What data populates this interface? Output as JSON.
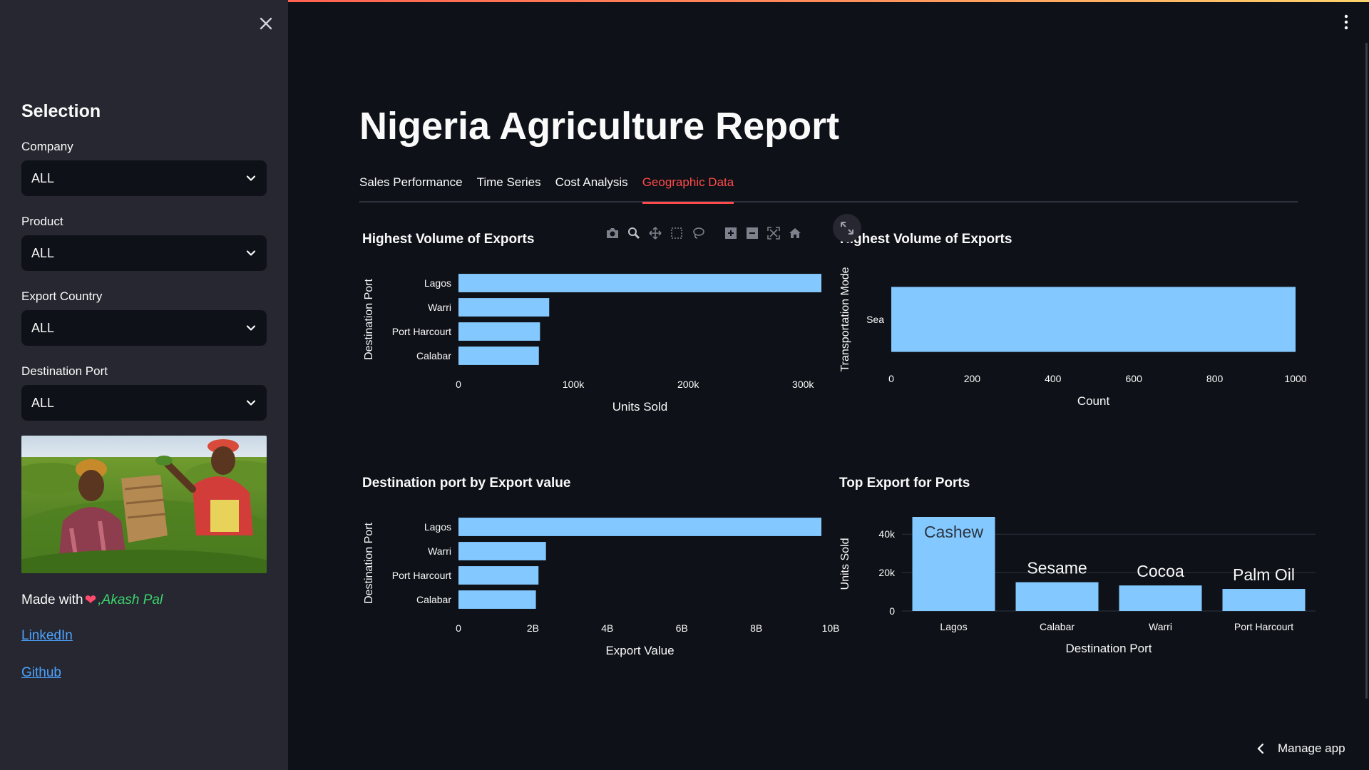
{
  "sidebar": {
    "heading": "Selection",
    "filters": [
      {
        "label": "Company",
        "value": "ALL"
      },
      {
        "label": "Product",
        "value": "ALL"
      },
      {
        "label": "Export Country",
        "value": "ALL"
      },
      {
        "label": "Destination Port",
        "value": "ALL"
      }
    ],
    "made_with": "Made with",
    "author": ",Akash Pal",
    "links": [
      "LinkedIn",
      "Github"
    ]
  },
  "header": {
    "title": "Nigeria Agriculture Report"
  },
  "tabs": [
    {
      "label": "Sales Performance",
      "active": false
    },
    {
      "label": "Time Series",
      "active": false
    },
    {
      "label": "Cost Analysis",
      "active": false
    },
    {
      "label": "Geographic Data",
      "active": true
    }
  ],
  "toolbar": {
    "manage_app": "Manage app"
  },
  "icons": [
    "close-icon",
    "chevron-down-icon",
    "camera-icon",
    "zoom-icon",
    "pan-icon",
    "box-select-icon",
    "lasso-icon",
    "zoom-in-icon",
    "zoom-out-icon",
    "autoscale-icon",
    "home-icon",
    "expand-icon",
    "kebab-menu-icon",
    "chevron-left-icon",
    "heart-icon"
  ],
  "colors": {
    "accent": "#ff4b4b",
    "bar": "#83c9ff",
    "link": "#4da3ff",
    "author": "#3dd56d"
  },
  "chart_data": [
    {
      "type": "bar",
      "orientation": "horizontal",
      "title": "Highest Volume of Exports",
      "xlabel": "Units Sold",
      "ylabel": "Destination Port",
      "categories": [
        "Lagos",
        "Warri",
        "Port Harcourt",
        "Calabar"
      ],
      "values": [
        316000,
        79000,
        71000,
        70000
      ],
      "xticks": [
        "0",
        "100k",
        "200k",
        "300k"
      ],
      "xlim": [
        0,
        316000
      ]
    },
    {
      "type": "bar",
      "orientation": "horizontal",
      "title": "Highest Volume of Exports",
      "xlabel": "Count",
      "ylabel": "Transportation Mode",
      "categories": [
        "Sea"
      ],
      "values": [
        1000
      ],
      "xticks": [
        "0",
        "200",
        "400",
        "600",
        "800",
        "1000"
      ],
      "xlim": [
        0,
        1000
      ]
    },
    {
      "type": "bar",
      "orientation": "horizontal",
      "title": "Destination port by Export value",
      "xlabel": "Export Value",
      "ylabel": "Destination Port",
      "categories": [
        "Lagos",
        "Warri",
        "Port Harcourt",
        "Calabar"
      ],
      "values": 9750000000,
      "values_list": [
        9750000000,
        2350000000,
        2150000000,
        2080000000
      ],
      "xticks": [
        "0",
        "2B",
        "4B",
        "6B",
        "8B",
        "10B"
      ],
      "xlim": [
        0,
        9750000000
      ]
    },
    {
      "type": "bar",
      "orientation": "vertical",
      "title": "Top Export for Ports",
      "xlabel": "Destination Port",
      "ylabel": "Units Sold",
      "categories": [
        "Lagos",
        "Calabar",
        "Warri",
        "Port Harcourt"
      ],
      "values": [
        49000,
        15000,
        13300,
        11500
      ],
      "labels": [
        "Cashew",
        "Sesame",
        "Cocoa",
        "Palm Oil"
      ],
      "yticks": [
        "0",
        "20k",
        "40k"
      ],
      "ylim": [
        0,
        49000
      ]
    }
  ]
}
